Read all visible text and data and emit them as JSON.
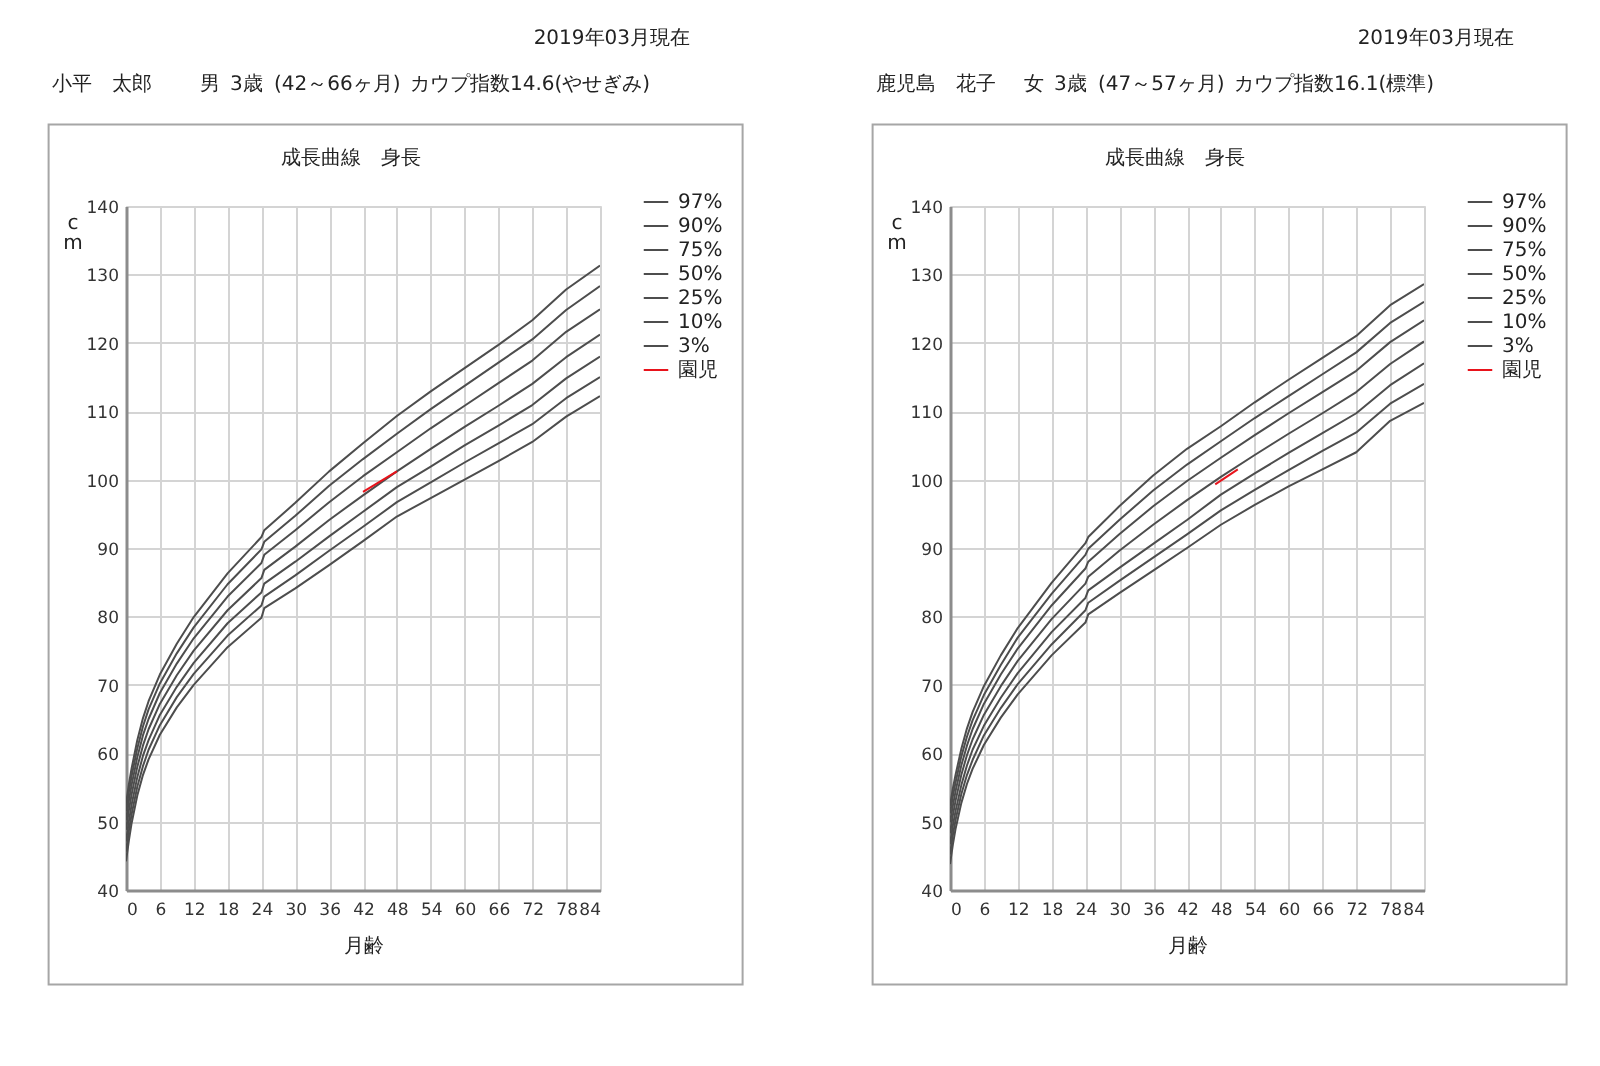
{
  "chart_data": [
    {
      "type": "line",
      "title": "成長曲線　身長",
      "xlabel": "月齢",
      "ylabel": "cm",
      "annotations": [
        "2019年03月現在",
        "小平　太郎",
        "男",
        "3歳",
        "(42～66ヶ月)",
        "カウプ指数14.6(やせぎみ)"
      ],
      "x": [
        0,
        0.5,
        1,
        2,
        3,
        4,
        6,
        9,
        12,
        18,
        24,
        24.5,
        30,
        36,
        42,
        48,
        54,
        60,
        66,
        72,
        78,
        84
      ],
      "series": [
        {
          "name": "97%",
          "color": "#4d4d4d",
          "values": [
            52.6,
            55.4,
            57.8,
            61.9,
            65.1,
            67.6,
            71.5,
            76.0,
            79.9,
            86.3,
            91.6,
            92.6,
            96.6,
            101.2,
            105.3,
            109.3,
            112.9,
            116.3,
            119.7,
            123.3,
            127.8,
            131.3
          ]
        },
        {
          "name": "90%",
          "color": "#4d4d4d",
          "values": [
            51.5,
            54.3,
            56.7,
            60.7,
            63.9,
            66.4,
            70.2,
            74.6,
            78.4,
            84.7,
            89.8,
            90.9,
            94.7,
            99.1,
            103.0,
            106.7,
            110.3,
            113.7,
            117.1,
            120.5,
            124.8,
            128.3
          ]
        },
        {
          "name": "75%",
          "color": "#4d4d4d",
          "values": [
            50.2,
            53.0,
            55.4,
            59.4,
            62.6,
            65.0,
            68.8,
            73.1,
            76.8,
            82.9,
            87.8,
            89.0,
            92.6,
            96.7,
            100.5,
            104.0,
            107.5,
            110.8,
            114.1,
            117.4,
            121.6,
            124.9
          ]
        },
        {
          "name": "50%",
          "color": "#4d4d4d",
          "values": [
            48.8,
            51.6,
            54.0,
            58.0,
            61.1,
            63.5,
            67.2,
            71.4,
            75.0,
            80.9,
            85.6,
            86.8,
            90.2,
            94.1,
            97.7,
            101.2,
            104.5,
            107.7,
            110.8,
            114.0,
            117.9,
            121.2
          ]
        },
        {
          "name": "25%",
          "color": "#4d4d4d",
          "values": [
            47.1,
            50.0,
            52.5,
            56.5,
            59.6,
            61.9,
            65.6,
            69.7,
            73.2,
            79.0,
            83.5,
            84.8,
            88.0,
            91.7,
            95.3,
            98.9,
            101.9,
            105.0,
            107.9,
            110.9,
            114.8,
            118.0
          ]
        },
        {
          "name": "10%",
          "color": "#4d4d4d",
          "values": [
            45.6,
            48.6,
            51.1,
            55.1,
            58.1,
            60.5,
            64.1,
            68.2,
            71.6,
            77.2,
            81.6,
            82.9,
            86.0,
            89.6,
            93.1,
            96.7,
            99.6,
            102.5,
            105.3,
            108.1,
            111.9,
            115.0
          ]
        },
        {
          "name": "3%",
          "color": "#4d4d4d",
          "values": [
            44.2,
            47.2,
            49.8,
            53.8,
            56.8,
            59.1,
            62.7,
            66.7,
            70.0,
            75.5,
            79.8,
            81.2,
            84.1,
            87.5,
            91.0,
            94.6,
            97.3,
            100.0,
            102.7,
            105.5,
            109.2,
            112.2
          ]
        },
        {
          "name": "園児",
          "color": "#e8131b",
          "x": [
            42,
            48
          ],
          "values": [
            98.2,
            101.2
          ]
        }
      ],
      "xlim": [
        0,
        84
      ],
      "ylim": [
        40,
        140
      ],
      "xticks": [
        0,
        6,
        12,
        18,
        24,
        30,
        36,
        42,
        48,
        54,
        60,
        66,
        72,
        78,
        84
      ],
      "yticks": [
        40,
        50,
        60,
        70,
        80,
        90,
        100,
        110,
        120,
        130,
        140
      ],
      "grid": true,
      "legend": "top right"
    },
    {
      "type": "line",
      "title": "成長曲線　身長",
      "xlabel": "月齢",
      "ylabel": "cm",
      "annotations": [
        "2019年03月現在",
        "鹿児島　花子",
        "女",
        "3歳",
        "(47～57ヶ月)",
        "カウプ指数16.1(標準)"
      ],
      "x": [
        0,
        0.5,
        1,
        2,
        3,
        4,
        6,
        9,
        12,
        18,
        24,
        24.5,
        30,
        36,
        42,
        48,
        54,
        60,
        66,
        72,
        78,
        84
      ],
      "series": [
        {
          "name": "97%",
          "color": "#4d4d4d",
          "values": [
            52.3,
            54.8,
            56.9,
            60.6,
            63.6,
            66.0,
            69.8,
            74.3,
            78.3,
            84.9,
            90.7,
            91.6,
            96.1,
            100.6,
            104.5,
            107.8,
            111.3,
            114.6,
            117.8,
            121.0,
            125.5,
            128.6
          ]
        },
        {
          "name": "90%",
          "color": "#4d4d4d",
          "values": [
            51.2,
            53.7,
            55.8,
            59.5,
            62.4,
            64.8,
            68.5,
            72.9,
            76.9,
            83.3,
            89.0,
            89.9,
            94.1,
            98.4,
            102.2,
            105.6,
            109.0,
            112.2,
            115.4,
            118.6,
            122.9,
            126.0
          ]
        },
        {
          "name": "75%",
          "color": "#4d4d4d",
          "values": [
            49.9,
            52.3,
            54.5,
            58.2,
            61.1,
            63.5,
            67.2,
            71.5,
            75.3,
            81.6,
            87.0,
            88.0,
            92.0,
            96.1,
            99.8,
            103.2,
            106.5,
            109.7,
            112.8,
            115.9,
            120.1,
            123.3
          ]
        },
        {
          "name": "50%",
          "color": "#4d4d4d",
          "values": [
            48.3,
            50.9,
            53.1,
            56.8,
            59.7,
            62.0,
            65.6,
            69.8,
            73.5,
            79.6,
            84.8,
            85.8,
            89.6,
            93.4,
            97.0,
            100.4,
            103.6,
            106.7,
            109.7,
            112.8,
            116.9,
            120.2
          ]
        },
        {
          "name": "25%",
          "color": "#4d4d4d",
          "values": [
            46.7,
            49.4,
            51.6,
            55.3,
            58.2,
            60.5,
            64.0,
            68.1,
            71.7,
            77.7,
            82.7,
            83.8,
            87.1,
            90.6,
            94.1,
            97.8,
            100.9,
            103.9,
            106.8,
            109.7,
            113.8,
            117.0
          ]
        },
        {
          "name": "10%",
          "color": "#4d4d4d",
          "values": [
            45.2,
            48.0,
            50.3,
            54.0,
            56.8,
            59.0,
            62.6,
            66.6,
            70.1,
            75.9,
            80.9,
            82.0,
            85.2,
            88.6,
            92.0,
            95.5,
            98.5,
            101.4,
            104.2,
            106.9,
            111.1,
            114.0
          ]
        },
        {
          "name": "3%",
          "color": "#4d4d4d",
          "values": [
            43.8,
            46.6,
            49.0,
            52.7,
            55.5,
            57.7,
            61.2,
            65.2,
            68.6,
            74.3,
            79.1,
            80.3,
            83.4,
            86.7,
            90.0,
            93.4,
            96.3,
            99.0,
            101.5,
            104.0,
            108.6,
            111.2
          ]
        },
        {
          "name": "園児",
          "color": "#e8131b",
          "x": [
            47,
            51
          ],
          "values": [
            99.3,
            101.5
          ]
        }
      ],
      "xlim": [
        0,
        84
      ],
      "ylim": [
        40,
        140
      ],
      "xticks": [
        0,
        6,
        12,
        18,
        24,
        30,
        36,
        42,
        48,
        54,
        60,
        66,
        72,
        78,
        84
      ],
      "yticks": [
        40,
        50,
        60,
        70,
        80,
        90,
        100,
        110,
        120,
        130,
        140
      ],
      "grid": true,
      "legend": "top right"
    }
  ]
}
